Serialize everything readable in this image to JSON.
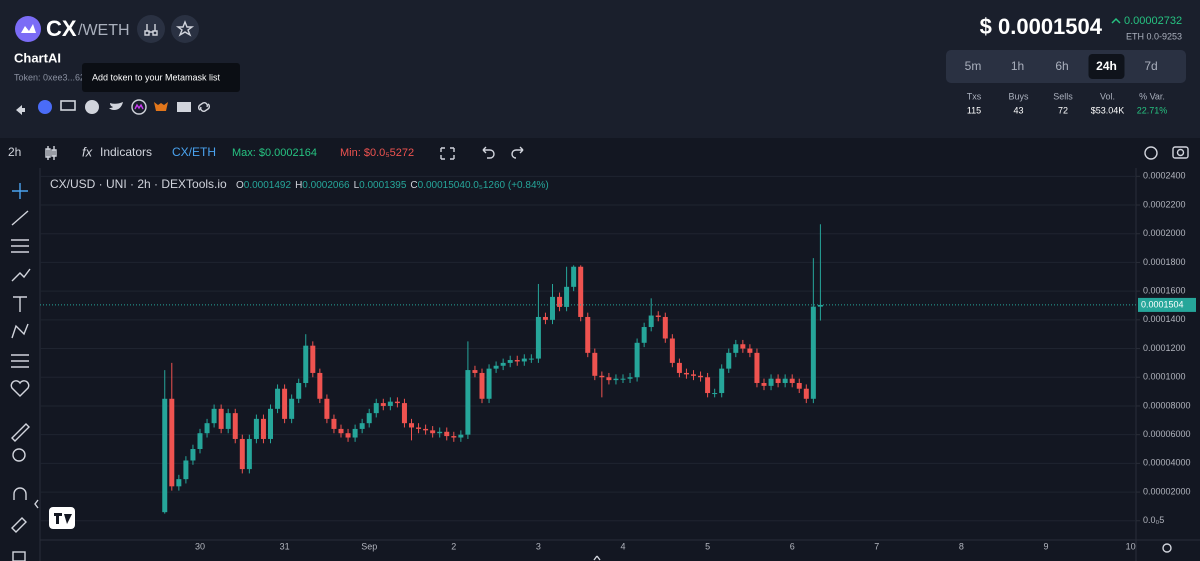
{
  "header": {
    "symbol": "CX",
    "quote": "/WETH",
    "name": "ChartAI",
    "token": "Token: 0xee3...62",
    "tooltip": "Add token to your Metamask list",
    "price": "$ 0.0001504",
    "change": "0.00002732",
    "eth_price": "ETH 0.0-9253",
    "timeframes": [
      "5m",
      "1h",
      "6h",
      "24h",
      "7d"
    ],
    "active_timeframe": "24h",
    "stats": [
      {
        "label": "Txs",
        "value": "115"
      },
      {
        "label": "Buys",
        "value": "43"
      },
      {
        "label": "Sells",
        "value": "72"
      },
      {
        "label": "Vol.",
        "value": "$53.04K"
      },
      {
        "label": "% Var.",
        "value": "22.71%"
      }
    ]
  },
  "toolbar": {
    "interval": "2h",
    "indicators_icon": "fx",
    "indicators": "Indicators",
    "pair": "CX/ETH",
    "max": "Max: $0.0002164",
    "min": "Min: $0.0₅5272"
  },
  "chart_data": {
    "type": "candlestick",
    "title": "CX/USD · UNI · 2h · DEXTools.io",
    "ohlc_legend": [
      {
        "key": "O",
        "value": "0.0001492"
      },
      {
        "key": "H",
        "value": "0.0002066"
      },
      {
        "key": "L",
        "value": "0.0001395"
      },
      {
        "key": "C",
        "value": "0.0001504"
      },
      {
        "key": "",
        "value": "0.0₅1260 (+0.84%)"
      }
    ],
    "up_color": "#26a69a",
    "down_color": "#ef5350",
    "categories": [
      null,
      null,
      null,
      null,
      null,
      "30",
      null,
      null,
      null,
      null,
      null,
      null,
      null,
      null,
      null,
      null,
      null,
      "31",
      null,
      null,
      null,
      null,
      null,
      null,
      null,
      null,
      null,
      null,
      null,
      "Sep",
      null,
      null,
      null,
      null,
      null,
      null,
      null,
      null,
      null,
      null,
      null,
      "2",
      null,
      null,
      null,
      null,
      null,
      null,
      null,
      null,
      null,
      null,
      null,
      "3",
      null,
      null,
      null,
      null,
      null,
      null,
      null,
      null,
      null,
      null,
      null,
      "4",
      null,
      null,
      null,
      null,
      null,
      null,
      null,
      null,
      null,
      null,
      null,
      "5",
      null,
      null,
      null,
      null,
      null,
      null,
      null,
      null,
      null,
      null,
      null,
      "6",
      null,
      null,
      null,
      null,
      null,
      null,
      null,
      null,
      null,
      null,
      null,
      "7",
      null,
      null,
      null,
      null,
      null,
      null,
      null,
      null,
      null,
      null,
      null,
      "8",
      null,
      null,
      null,
      null,
      null,
      null,
      null,
      null,
      null,
      null,
      null,
      "9",
      null,
      null,
      null,
      null,
      null,
      null,
      null,
      null,
      null,
      null,
      null,
      "10"
    ],
    "open": [
      6e-06,
      8.5e-05,
      2.4e-05,
      2.9e-05,
      4.2e-05,
      5e-05,
      6.1e-05,
      6.8e-05,
      7.8e-05,
      6.4e-05,
      7.5e-05,
      5.7e-05,
      3.6e-05,
      5.7e-05,
      7.1e-05,
      5.7e-05,
      7.8e-05,
      9.2e-05,
      7.1e-05,
      8.5e-05,
      9.6e-05,
      0.000122,
      0.000103,
      8.5e-05,
      7.1e-05,
      6.4e-05,
      6.1e-05,
      5.8e-05,
      6.4e-05,
      6.8e-05,
      7.5e-05,
      8.2e-05,
      8e-05,
      8.3e-05,
      8.2e-05,
      6.8e-05,
      6.5e-05,
      6.4e-05,
      6.3e-05,
      6.1e-05,
      6.2e-05,
      5.9e-05,
      5.8e-05,
      6e-05,
      0.000105,
      0.000103,
      8.5e-05,
      0.000106,
      0.000108,
      0.00011,
      0.000112,
      0.000111,
      0.000113,
      0.000113,
      0.000142,
      0.00014,
      0.000156,
      0.000149,
      0.000163,
      0.000177,
      0.000142,
      0.000117,
      0.000101,
      0.0001,
      9.8e-05,
      9.9e-05,
      9.9e-05,
      0.0001,
      0.000124,
      0.000135,
      0.000143,
      0.000142,
      0.000127,
      0.00011,
      0.000103,
      0.000102,
      0.000101,
      0.0001,
      8.9e-05,
      8.9e-05,
      0.000106,
      0.000117,
      0.000123,
      0.00012,
      0.000117,
      9.6e-05,
      9.4e-05,
      9.9e-05,
      9.6e-05,
      9.9e-05,
      9.6e-05,
      9.2e-05,
      8.5e-05,
      0.0001492,
      null,
      null,
      null,
      null,
      null,
      null,
      null,
      null,
      null,
      null,
      null,
      null,
      null,
      null,
      null,
      null,
      null,
      null,
      null,
      null,
      null,
      null,
      null,
      null,
      null,
      null,
      null,
      null,
      null,
      null,
      null,
      null,
      null,
      null,
      null,
      null,
      null,
      null,
      null,
      null,
      null,
      null,
      null,
      null
    ],
    "high": [
      0.000105,
      0.00011,
      3.2e-05,
      4.5e-05,
      5.3e-05,
      6.4e-05,
      7.1e-05,
      8.1e-05,
      8.1e-05,
      7.8e-05,
      7.8e-05,
      6e-05,
      6e-05,
      7.4e-05,
      7.4e-05,
      8.1e-05,
      9.5e-05,
      9.5e-05,
      8.8e-05,
      9.9e-05,
      0.00013,
      0.000125,
      0.000106,
      8.8e-05,
      7.4e-05,
      6.7e-05,
      6.4e-05,
      6.7e-05,
      7.1e-05,
      7.8e-05,
      8.5e-05,
      8.5e-05,
      8.6e-05,
      8.6e-05,
      8.5e-05,
      7.1e-05,
      6.8e-05,
      6.7e-05,
      6.6e-05,
      6.5e-05,
      6.5e-05,
      6.2e-05,
      6.3e-05,
      0.000125,
      0.000108,
      0.000106,
      0.000109,
      0.000111,
      0.000113,
      0.000115,
      0.000115,
      0.000116,
      0.000116,
      0.000165,
      0.000145,
      0.000165,
      0.000159,
      0.000177,
      0.000178,
      0.000178,
      0.000145,
      0.00012,
      0.000104,
      0.000103,
      0.000102,
      0.000102,
      0.000103,
      0.000127,
      0.000138,
      0.000155,
      0.000146,
      0.000145,
      0.00013,
      0.000113,
      0.000106,
      0.000105,
      0.000104,
      0.000103,
      9.2e-05,
      0.000109,
      0.00012,
      0.000126,
      0.000126,
      0.000123,
      0.00012,
      9.9e-05,
      0.000102,
      0.000102,
      0.000102,
      0.000102,
      9.9e-05,
      9.5e-05,
      0.000183,
      0.0002066,
      null,
      null,
      null,
      null,
      null,
      null,
      null,
      null,
      null,
      null,
      null,
      null,
      null,
      null,
      null,
      null,
      null,
      null,
      null,
      null,
      null,
      null,
      null,
      null,
      null,
      null,
      null,
      null,
      null,
      null,
      null,
      null,
      null,
      null,
      null,
      null,
      null,
      null,
      null,
      null,
      null,
      null,
      null,
      null
    ],
    "low": [
      5e-06,
      2.1e-05,
      2.1e-05,
      2.6e-05,
      3.9e-05,
      4.7e-05,
      5.8e-05,
      6.5e-05,
      6.1e-05,
      6.1e-05,
      5.4e-05,
      3.3e-05,
      3.3e-05,
      5.4e-05,
      5.4e-05,
      5.4e-05,
      7.5e-05,
      6.8e-05,
      6.8e-05,
      8.2e-05,
      9.3e-05,
      0.0001,
      8.2e-05,
      6.8e-05,
      6.1e-05,
      5.8e-05,
      5.5e-05,
      5.5e-05,
      6.1e-05,
      6.5e-05,
      7.2e-05,
      7.7e-05,
      7.7e-05,
      7.9e-05,
      6.5e-05,
      5.6e-05,
      6.1e-05,
      6e-05,
      5.8e-05,
      5.8e-05,
      5.6e-05,
      5.5e-05,
      5.5e-05,
      5.7e-05,
      0.0001,
      8.2e-05,
      8.2e-05,
      0.000103,
      0.000105,
      0.000107,
      0.000108,
      0.000108,
      0.00011,
      0.00011,
      0.000137,
      0.000137,
      0.000146,
      0.000146,
      0.00016,
      0.000139,
      0.000114,
      9.8e-05,
      8.6e-05,
      9.5e-05,
      9.5e-05,
      9.6e-05,
      9.6e-05,
      9.7e-05,
      0.000121,
      0.000132,
      0.000139,
      0.000124,
      0.000107,
      0.0001,
      9.9e-05,
      9.8e-05,
      9.7e-05,
      8.6e-05,
      8.6e-05,
      8.6e-05,
      0.000103,
      0.000114,
      0.000117,
      0.000114,
      9.3e-05,
      9.1e-05,
      9.1e-05,
      9.3e-05,
      9.3e-05,
      9.3e-05,
      8.9e-05,
      8.2e-05,
      8.2e-05,
      0.0001395,
      null,
      null,
      null,
      null,
      null,
      null,
      null,
      null,
      null,
      null,
      null,
      null,
      null,
      null,
      null,
      null,
      null,
      null,
      null,
      null,
      null,
      null,
      null,
      null,
      null,
      null,
      null,
      null,
      null,
      null,
      null,
      null,
      null,
      null,
      null,
      null,
      null,
      null,
      null,
      null,
      null,
      null,
      null,
      null
    ],
    "close": [
      8.5e-05,
      2.4e-05,
      2.9e-05,
      4.2e-05,
      5e-05,
      6.1e-05,
      6.8e-05,
      7.8e-05,
      6.4e-05,
      7.5e-05,
      5.7e-05,
      3.6e-05,
      5.7e-05,
      7.1e-05,
      5.7e-05,
      7.8e-05,
      9.2e-05,
      7.1e-05,
      8.5e-05,
      9.6e-05,
      0.000122,
      0.000103,
      8.5e-05,
      7.1e-05,
      6.4e-05,
      6.1e-05,
      5.8e-05,
      6.4e-05,
      6.8e-05,
      7.5e-05,
      8.2e-05,
      8e-05,
      8.3e-05,
      8.2e-05,
      6.8e-05,
      6.5e-05,
      6.4e-05,
      6.3e-05,
      6.1e-05,
      6.2e-05,
      5.9e-05,
      5.8e-05,
      6e-05,
      0.000105,
      0.000103,
      8.5e-05,
      0.000106,
      0.000108,
      0.00011,
      0.000112,
      0.000111,
      0.000113,
      0.000113,
      0.000142,
      0.00014,
      0.000156,
      0.000149,
      0.000163,
      0.000177,
      0.000142,
      0.000117,
      0.000101,
      0.0001,
      9.8e-05,
      9.9e-05,
      9.9e-05,
      0.0001,
      0.000124,
      0.000135,
      0.000143,
      0.000142,
      0.000127,
      0.00011,
      0.000103,
      0.000102,
      0.000101,
      0.0001,
      8.9e-05,
      8.9e-05,
      0.000106,
      0.000117,
      0.000123,
      0.00012,
      0.000117,
      9.6e-05,
      9.4e-05,
      9.9e-05,
      9.6e-05,
      9.9e-05,
      9.6e-05,
      9.2e-05,
      8.5e-05,
      0.0001492,
      0.0001504,
      null,
      null,
      null,
      null,
      null,
      null,
      null,
      null,
      null,
      null,
      null,
      null,
      null,
      null,
      null,
      null,
      null,
      null,
      null,
      null,
      null,
      null,
      null,
      null,
      null,
      null,
      null,
      null,
      null,
      null,
      null,
      null,
      null,
      null,
      null,
      null,
      null,
      null,
      null,
      null,
      null,
      null,
      null,
      null
    ],
    "ylim": [
      -1.34e-05,
      0.0002458
    ],
    "yticks": [
      {
        "value": 0.00024,
        "label": "0.0002400"
      },
      {
        "value": 0.00022,
        "label": "0.0002200"
      },
      {
        "value": 0.0002,
        "label": "0.0002000"
      },
      {
        "value": 0.00018,
        "label": "0.0001800"
      },
      {
        "value": 0.00016,
        "label": "0.0001600"
      },
      {
        "value": 0.00014,
        "label": "0.0001400"
      },
      {
        "value": 0.00012,
        "label": "0.0001200"
      },
      {
        "value": 0.0001,
        "label": "0.0001000"
      },
      {
        "value": 8e-05,
        "label": "0.00008000"
      },
      {
        "value": 6e-05,
        "label": "0.00006000"
      },
      {
        "value": 4e-05,
        "label": "0.00004000"
      },
      {
        "value": 2e-05,
        "label": "0.00002000"
      },
      {
        "value": 0,
        "label": "0.0₀5"
      }
    ],
    "grid": true,
    "price_line": {
      "value": 0.0001504,
      "label": "0.0001504"
    }
  }
}
